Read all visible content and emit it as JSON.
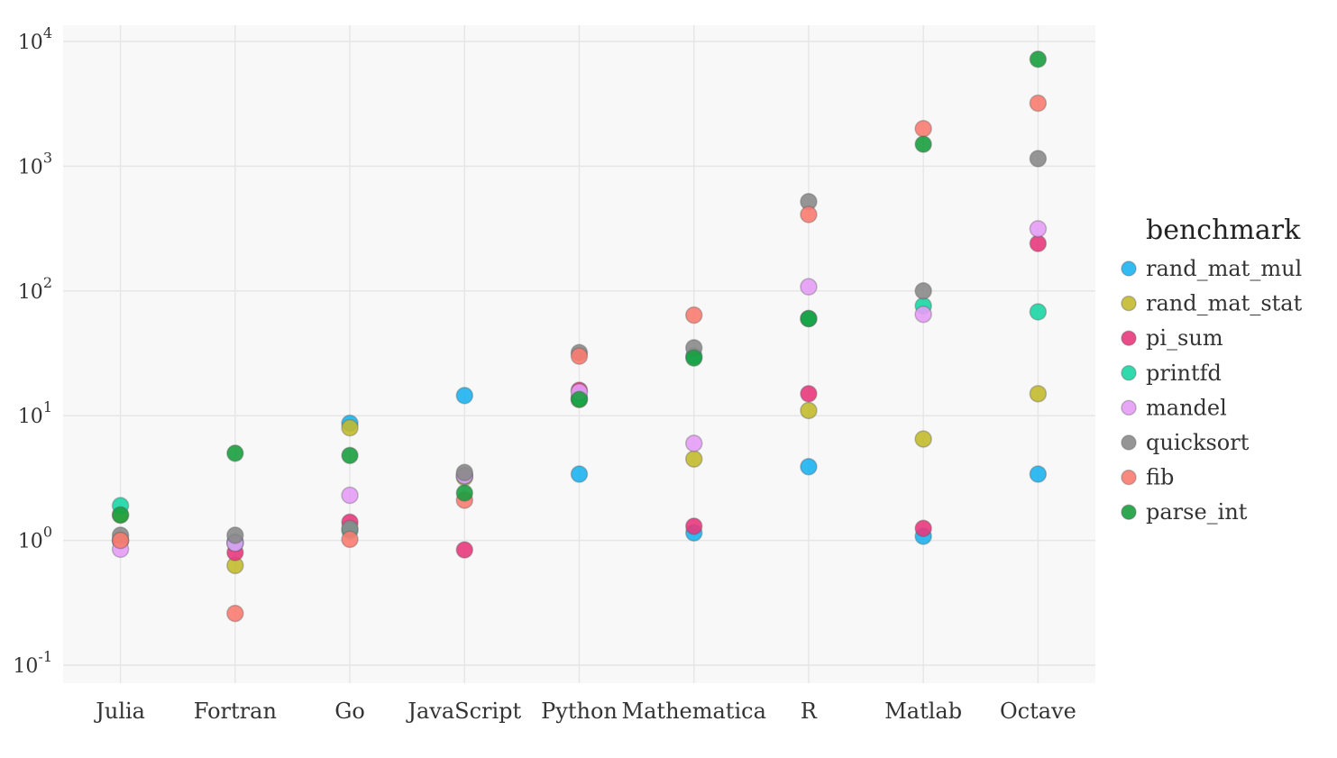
{
  "chart_data": {
    "type": "scatter",
    "title": "",
    "xlabel": "",
    "ylabel": "",
    "y_scale": "log",
    "ylim": [
      0.1,
      10000
    ],
    "y_ticks": [
      {
        "value": 0.1,
        "base": "10",
        "exp": "-1"
      },
      {
        "value": 1,
        "base": "10",
        "exp": "0"
      },
      {
        "value": 10,
        "base": "10",
        "exp": "1"
      },
      {
        "value": 100,
        "base": "10",
        "exp": "2"
      },
      {
        "value": 1000,
        "base": "10",
        "exp": "3"
      },
      {
        "value": 10000,
        "base": "10",
        "exp": "4"
      }
    ],
    "grid": true,
    "categories": [
      "Julia",
      "Fortran",
      "Go",
      "JavaScript",
      "Python",
      "Mathematica",
      "R",
      "Matlab",
      "Octave"
    ],
    "legend": {
      "title": "benchmark",
      "position": "right"
    },
    "series": [
      {
        "name": "rand_mat_mul",
        "color": "#1cb3f0",
        "values": [
          1.0,
          0.97,
          8.7,
          14.5,
          3.4,
          1.15,
          3.9,
          1.08,
          3.4
        ]
      },
      {
        "name": "rand_mat_stat",
        "color": "#c2ba2e",
        "values": [
          1.6,
          0.63,
          8.0,
          3.2,
          13.5,
          4.5,
          11.0,
          6.5,
          15.0
        ]
      },
      {
        "name": "pi_sum",
        "color": "#e8397d",
        "values": [
          1.0,
          0.8,
          1.4,
          0.84,
          16.0,
          1.3,
          15.0,
          1.25,
          240
        ]
      },
      {
        "name": "printfd",
        "color": "#1ad6a3",
        "values": [
          1.9,
          0.95,
          1.2,
          3.3,
          14.0,
          30.0,
          60.0,
          76.0,
          68.0
        ]
      },
      {
        "name": "mandel",
        "color": "#e59cf5",
        "values": [
          0.85,
          0.95,
          2.3,
          3.3,
          15.5,
          6.0,
          108,
          65.0,
          315
        ]
      },
      {
        "name": "quicksort",
        "color": "#8a8a8a",
        "values": [
          1.1,
          1.1,
          1.25,
          3.5,
          32.0,
          35.0,
          520,
          100,
          1150
        ]
      },
      {
        "name": "fib",
        "color": "#f87c70",
        "values": [
          1.0,
          0.26,
          1.02,
          2.1,
          30.0,
          64.0,
          410,
          2000,
          3200
        ]
      },
      {
        "name": "parse_int",
        "color": "#1a9e3f",
        "values": [
          1.6,
          5.0,
          4.8,
          2.4,
          13.5,
          29.0,
          60.0,
          1500,
          7200
        ]
      }
    ]
  }
}
